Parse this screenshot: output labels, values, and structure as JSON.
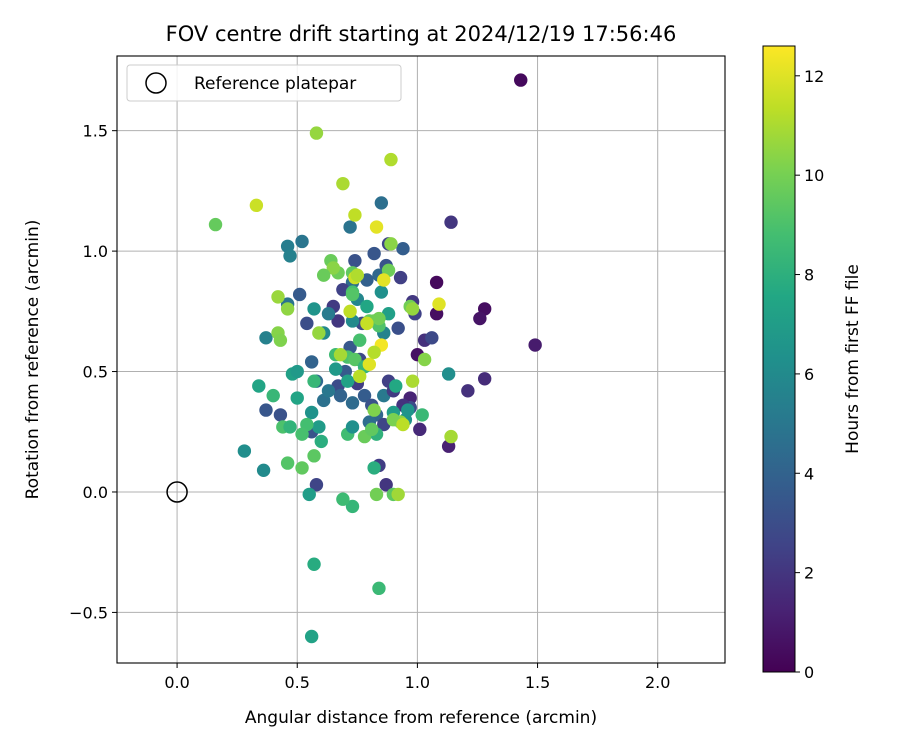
{
  "chart_data": {
    "type": "scatter",
    "title": "FOV centre drift starting at 2024/12/19 17:56:46",
    "xlabel": "Angular distance from reference (arcmin)",
    "ylabel": "Rotation from reference (arcmin)",
    "xlim": [
      -0.25,
      2.28
    ],
    "ylim": [
      -0.71,
      1.81
    ],
    "xticks": [
      0.0,
      0.5,
      1.0,
      1.5,
      2.0
    ],
    "xtick_labels": [
      "0.0",
      "0.5",
      "1.0",
      "1.5",
      "2.0"
    ],
    "yticks": [
      -0.5,
      0.0,
      0.5,
      1.0,
      1.5
    ],
    "ytick_labels": [
      "−0.5",
      "0.0",
      "0.5",
      "1.0",
      "1.5"
    ],
    "grid": true,
    "legend": {
      "placement": "top-left",
      "entries": [
        "Reference platepar"
      ]
    },
    "reference_point": {
      "x": 0.0,
      "y": 0.0,
      "marker": "open-circle"
    },
    "colorbar": {
      "label": "Hours from first FF file",
      "range": [
        0,
        12.6
      ],
      "ticks": [
        0,
        2,
        4,
        6,
        8,
        10,
        12
      ],
      "tick_labels": [
        "0",
        "2",
        "4",
        "6",
        "8",
        "10",
        "12"
      ],
      "colormap": "viridis"
    },
    "points": [
      [
        1.43,
        1.71,
        0.3
      ],
      [
        1.49,
        0.61,
        1.0
      ],
      [
        1.28,
        0.76,
        0.5
      ],
      [
        1.26,
        0.72,
        0.7
      ],
      [
        1.28,
        0.47,
        1.6
      ],
      [
        1.21,
        0.42,
        1.8
      ],
      [
        1.13,
        0.19,
        1.2
      ],
      [
        1.14,
        1.12,
        2.0
      ],
      [
        1.08,
        0.87,
        0.3
      ],
      [
        1.08,
        0.74,
        0.5
      ],
      [
        1.0,
        0.57,
        0.6
      ],
      [
        1.01,
        0.26,
        1.5
      ],
      [
        1.03,
        0.63,
        1.8
      ],
      [
        1.06,
        0.64,
        2.8
      ],
      [
        0.98,
        0.79,
        2.1
      ],
      [
        0.99,
        0.74,
        2.5
      ],
      [
        0.97,
        0.39,
        1.3
      ],
      [
        0.97,
        0.35,
        2.9
      ],
      [
        0.94,
        0.36,
        1.9
      ],
      [
        0.92,
        0.68,
        3.1
      ],
      [
        0.93,
        0.89,
        2.4
      ],
      [
        0.94,
        1.01,
        3.8
      ],
      [
        0.88,
        1.03,
        2.6
      ],
      [
        0.87,
        0.94,
        3.3
      ],
      [
        0.85,
        1.2,
        4.6
      ],
      [
        0.84,
        0.9,
        4.2
      ],
      [
        0.82,
        0.99,
        3.4
      ],
      [
        0.79,
        0.88,
        3.9
      ],
      [
        0.77,
        0.7,
        2.8
      ],
      [
        0.74,
        0.96,
        3.2
      ],
      [
        0.73,
        0.87,
        4.5
      ],
      [
        0.72,
        1.1,
        4.8
      ],
      [
        0.69,
        0.84,
        2.5
      ],
      [
        0.67,
        0.71,
        2.0
      ],
      [
        0.65,
        0.77,
        2.2
      ],
      [
        0.72,
        0.6,
        3.5
      ],
      [
        0.76,
        0.55,
        2.7
      ],
      [
        0.7,
        0.5,
        3.6
      ],
      [
        0.75,
        0.45,
        2.3
      ],
      [
        0.78,
        0.4,
        3.7
      ],
      [
        0.67,
        0.44,
        2.9
      ],
      [
        0.68,
        0.4,
        4.0
      ],
      [
        0.73,
        0.37,
        4.4
      ],
      [
        0.81,
        0.36,
        3.2
      ],
      [
        0.83,
        0.32,
        4.1
      ],
      [
        0.8,
        0.29,
        4.5
      ],
      [
        0.86,
        0.28,
        2.6
      ],
      [
        0.88,
        0.46,
        2.4
      ],
      [
        0.86,
        0.4,
        5.1
      ],
      [
        0.9,
        0.42,
        2.2
      ],
      [
        0.84,
        0.11,
        2.3
      ],
      [
        0.87,
        0.03,
        2.0
      ],
      [
        0.58,
        0.03,
        2.6
      ],
      [
        0.56,
        0.25,
        3.3
      ],
      [
        0.61,
        0.38,
        4.7
      ],
      [
        0.63,
        0.42,
        5.0
      ],
      [
        0.58,
        0.46,
        4.3
      ],
      [
        0.56,
        0.54,
        4.0
      ],
      [
        0.54,
        0.7,
        3.0
      ],
      [
        0.51,
        0.82,
        3.6
      ],
      [
        0.52,
        1.04,
        4.9
      ],
      [
        0.46,
        1.02,
        5.3
      ],
      [
        0.47,
        0.98,
        5.5
      ],
      [
        0.46,
        0.78,
        4.8
      ],
      [
        0.43,
        0.32,
        3.2
      ],
      [
        0.37,
        0.34,
        3.4
      ],
      [
        0.37,
        0.64,
        5.5
      ],
      [
        0.36,
        0.09,
        6.0
      ],
      [
        0.28,
        0.17,
        6.2
      ],
      [
        0.57,
        0.76,
        6.5
      ],
      [
        0.61,
        0.66,
        5.9
      ],
      [
        0.63,
        0.74,
        5.2
      ],
      [
        0.66,
        0.51,
        6.8
      ],
      [
        0.71,
        0.46,
        7.3
      ],
      [
        0.73,
        0.71,
        6.0
      ],
      [
        0.75,
        0.8,
        5.8
      ],
      [
        0.79,
        0.77,
        7.5
      ],
      [
        0.85,
        0.83,
        6.3
      ],
      [
        0.86,
        0.66,
        5.6
      ],
      [
        0.88,
        0.74,
        7.1
      ],
      [
        0.91,
        0.44,
        7.6
      ],
      [
        0.9,
        0.33,
        7.0
      ],
      [
        0.95,
        0.3,
        6.4
      ],
      [
        0.96,
        0.34,
        6.6
      ],
      [
        1.02,
        0.32,
        8.5
      ],
      [
        1.13,
        0.49,
        6.2
      ],
      [
        0.56,
        0.33,
        6.4
      ],
      [
        0.59,
        0.27,
        6.9
      ],
      [
        0.55,
        -0.01,
        7.0
      ],
      [
        0.57,
        -0.3,
        7.8
      ],
      [
        0.56,
        -0.6,
        7.3
      ],
      [
        0.84,
        -0.4,
        8.5
      ],
      [
        0.73,
        -0.06,
        8.3
      ],
      [
        0.69,
        -0.03,
        8.6
      ],
      [
        0.82,
        0.1,
        7.9
      ],
      [
        0.83,
        0.24,
        8.1
      ],
      [
        0.71,
        0.24,
        8.7
      ],
      [
        0.73,
        0.27,
        6.3
      ],
      [
        0.6,
        0.21,
        7.9
      ],
      [
        0.54,
        0.28,
        8.8
      ],
      [
        0.5,
        0.39,
        7.4
      ],
      [
        0.48,
        0.49,
        7.2
      ],
      [
        0.5,
        0.5,
        6.8
      ],
      [
        0.4,
        0.4,
        8.4
      ],
      [
        0.34,
        0.44,
        7.4
      ],
      [
        0.44,
        0.27,
        9.0
      ],
      [
        0.47,
        0.27,
        8.2
      ],
      [
        0.52,
        0.24,
        8.9
      ],
      [
        0.52,
        0.1,
        9.5
      ],
      [
        0.46,
        0.12,
        9.2
      ],
      [
        0.57,
        0.15,
        9.4
      ],
      [
        0.57,
        0.46,
        8.4
      ],
      [
        0.66,
        0.57,
        8.6
      ],
      [
        0.71,
        0.56,
        9.0
      ],
      [
        0.74,
        0.55,
        9.3
      ],
      [
        0.76,
        0.63,
        8.9
      ],
      [
        0.78,
        0.52,
        8.3
      ],
      [
        0.8,
        0.71,
        9.6
      ],
      [
        0.82,
        0.71,
        9.8
      ],
      [
        0.84,
        0.69,
        9.1
      ],
      [
        0.84,
        0.72,
        9.9
      ],
      [
        0.73,
        0.83,
        8.8
      ],
      [
        0.73,
        0.82,
        9.2
      ],
      [
        0.73,
        0.91,
        9.5
      ],
      [
        0.67,
        0.91,
        9.8
      ],
      [
        0.64,
        0.96,
        9.7
      ],
      [
        0.65,
        0.93,
        10.4
      ],
      [
        0.61,
        0.9,
        9.7
      ],
      [
        0.88,
        0.92,
        9.8
      ],
      [
        0.89,
        1.03,
        10.4
      ],
      [
        0.97,
        0.77,
        9.9
      ],
      [
        0.98,
        0.76,
        10.6
      ],
      [
        0.98,
        0.46,
        11.0
      ],
      [
        1.03,
        0.55,
        10.3
      ],
      [
        0.93,
        0.29,
        10.5
      ],
      [
        0.9,
        0.3,
        10.1
      ],
      [
        0.9,
        -0.01,
        9.4
      ],
      [
        0.92,
        -0.01,
        10.8
      ],
      [
        0.83,
        -0.01,
        9.9
      ],
      [
        0.82,
        0.34,
        10.2
      ],
      [
        0.78,
        0.23,
        9.7
      ],
      [
        0.81,
        0.26,
        9.5
      ],
      [
        0.42,
        0.66,
        10.3
      ],
      [
        0.43,
        0.63,
        10.2
      ],
      [
        0.42,
        0.81,
        10.7
      ],
      [
        0.46,
        0.76,
        10.5
      ],
      [
        0.59,
        0.66,
        10.6
      ],
      [
        0.68,
        0.57,
        10.9
      ],
      [
        0.76,
        0.48,
        11.3
      ],
      [
        0.8,
        0.53,
        12.0
      ],
      [
        0.85,
        0.61,
        12.4
      ],
      [
        0.86,
        0.88,
        12.1
      ],
      [
        1.09,
        0.78,
        12.0
      ],
      [
        1.14,
        0.23,
        10.9
      ],
      [
        0.16,
        1.11,
        9.6
      ],
      [
        0.33,
        1.19,
        11.6
      ],
      [
        0.58,
        1.49,
        10.6
      ],
      [
        0.69,
        1.28,
        11.0
      ],
      [
        0.74,
        1.15,
        11.4
      ],
      [
        0.83,
        1.1,
        12.1
      ],
      [
        0.89,
        1.38,
        11.1
      ],
      [
        0.74,
        0.89,
        11.6
      ],
      [
        0.75,
        0.9,
        11.1
      ],
      [
        0.72,
        0.75,
        11.4
      ],
      [
        0.79,
        0.7,
        11.5
      ],
      [
        0.94,
        0.28,
        11.3
      ],
      [
        0.82,
        0.58,
        11.2
      ]
    ]
  }
}
